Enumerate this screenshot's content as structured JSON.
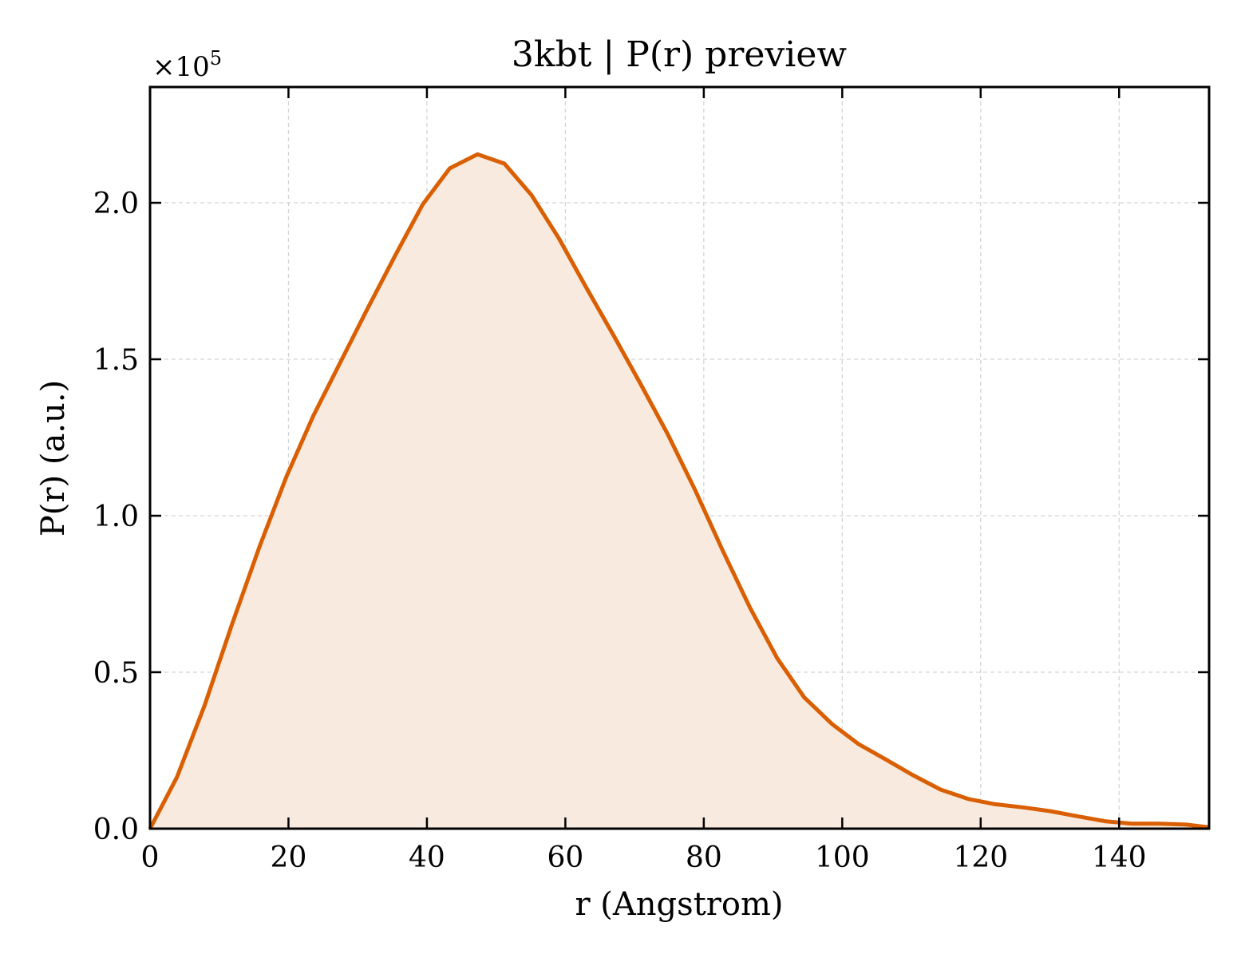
{
  "chart_data": {
    "type": "area",
    "title": "3kbt | P(r) preview",
    "xlabel": "r (Angstrom)",
    "ylabel": "P(r) (a.u.)",
    "y_multiplier_base": "×10",
    "y_multiplier_exp": "5",
    "xlim": [
      0,
      153
    ],
    "ylim": [
      0,
      2.37
    ],
    "xticks": [
      0,
      20,
      40,
      60,
      80,
      100,
      120,
      140
    ],
    "xtick_labels": [
      "0",
      "20",
      "40",
      "60",
      "80",
      "100",
      "120",
      "140"
    ],
    "yticks": [
      0,
      0.5,
      1.0,
      1.5,
      2.0
    ],
    "ytick_labels": [
      "0.0",
      "0.5",
      "1.0",
      "1.5",
      "2.0"
    ],
    "grid": true,
    "line_color": "#d95f02",
    "fill_color": "#f9eadf",
    "series": [
      {
        "x": [
          0,
          3.9,
          7.9,
          11.8,
          15.8,
          19.7,
          23.6,
          27.6,
          31.5,
          35.5,
          39.4,
          43.3,
          47.3,
          51.2,
          55.1,
          59.1,
          63.0,
          67.0,
          70.9,
          74.8,
          78.8,
          82.7,
          86.7,
          90.6,
          94.5,
          98.5,
          102.4,
          106.4,
          110.3,
          114.2,
          118.2,
          122.1,
          126.1,
          130.0,
          133.9,
          137.9,
          141.8,
          145.8,
          149.7,
          153.0
        ],
        "y": [
          0.0,
          0.165,
          0.395,
          0.65,
          0.9,
          1.125,
          1.32,
          1.495,
          1.665,
          1.835,
          1.995,
          2.11,
          2.155,
          2.125,
          2.025,
          1.885,
          1.73,
          1.575,
          1.42,
          1.26,
          1.08,
          0.89,
          0.705,
          0.545,
          0.42,
          0.335,
          0.27,
          0.22,
          0.17,
          0.125,
          0.095,
          0.078,
          0.068,
          0.056,
          0.04,
          0.024,
          0.016,
          0.016,
          0.013,
          0.004
        ]
      }
    ]
  }
}
